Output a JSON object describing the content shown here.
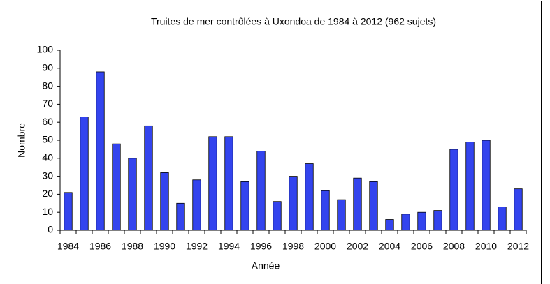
{
  "chart_data": {
    "type": "bar",
    "title": "Truites de mer contrôlées à Uxondoa de 1984 à 2012 (962 sujets)",
    "x_label": "Année",
    "y_label": "Nombre",
    "categories": [
      "1984",
      null,
      "1986",
      null,
      "1988",
      null,
      "1990",
      null,
      "1992",
      null,
      "1994",
      null,
      "1996",
      null,
      "1998",
      null,
      "2000",
      null,
      "2002",
      null,
      "2004",
      null,
      "2006",
      null,
      "2008",
      null,
      "2010",
      null,
      "2012"
    ],
    "values": [
      21,
      63,
      88,
      48,
      40,
      58,
      32,
      15,
      28,
      52,
      52,
      27,
      44,
      16,
      30,
      37,
      22,
      17,
      29,
      27,
      6,
      9,
      10,
      11,
      45,
      49,
      50,
      13,
      23
    ],
    "color": "#3344ee",
    "ylim": [
      0,
      100
    ],
    "yticks": [
      0,
      10,
      20,
      30,
      40,
      50,
      60,
      70,
      80,
      90,
      100
    ],
    "grid": false
  }
}
